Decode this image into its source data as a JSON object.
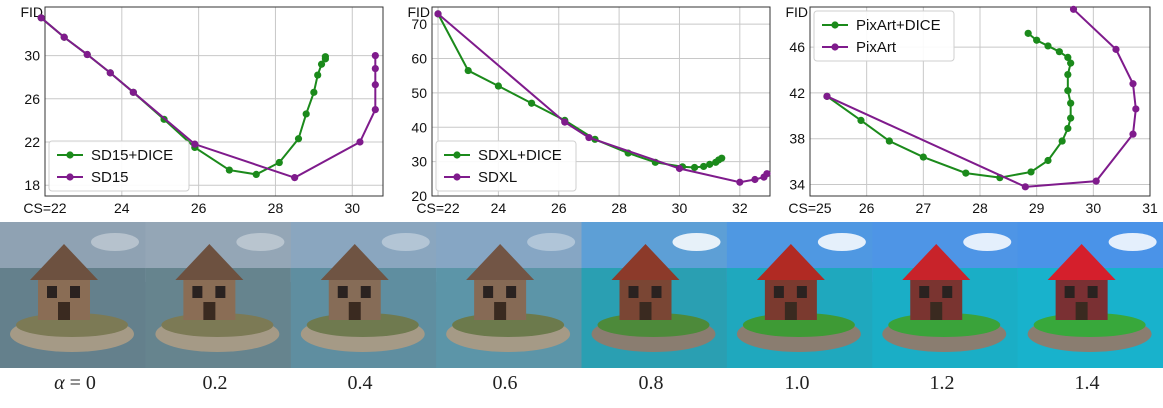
{
  "colors": {
    "dice": "#1b8a1b",
    "base": "#7f1b8c",
    "grid": "#c8c8c8"
  },
  "chart_data": [
    {
      "type": "line",
      "ylabel": "FID",
      "xlabel_prefix": "CS=",
      "xlim": [
        22,
        30.8
      ],
      "ylim": [
        17,
        34.5
      ],
      "xticks": [
        22,
        24,
        26,
        28,
        30
      ],
      "yticks": [
        18,
        22,
        26,
        30
      ],
      "grid": true,
      "legend": "lower-left",
      "series": [
        {
          "name": "SD15+DICE",
          "color": "dice",
          "x": [
            21.9,
            22.5,
            23.1,
            23.7,
            24.3,
            25.1,
            25.9,
            26.8,
            27.5,
            28.1,
            28.6,
            28.8,
            29.0,
            29.1,
            29.2,
            29.3,
            29.3
          ],
          "y": [
            33.5,
            31.7,
            30.1,
            28.4,
            26.6,
            24.1,
            21.5,
            19.4,
            19.0,
            20.1,
            22.3,
            24.6,
            26.6,
            28.2,
            29.2,
            29.7,
            29.9
          ]
        },
        {
          "name": "SD15",
          "color": "base",
          "x": [
            21.9,
            22.5,
            23.1,
            23.7,
            24.3,
            25.9,
            28.5,
            30.2,
            30.6,
            30.6,
            30.6,
            30.6
          ],
          "y": [
            33.5,
            31.7,
            30.1,
            28.4,
            26.6,
            21.8,
            18.7,
            22.0,
            25.0,
            27.3,
            28.8,
            30.0
          ]
        }
      ]
    },
    {
      "type": "line",
      "ylabel": "FID",
      "xlabel_prefix": "CS=",
      "xlim": [
        21.8,
        33.0
      ],
      "ylim": [
        20,
        75
      ],
      "xticks": [
        22,
        24,
        26,
        28,
        30,
        32
      ],
      "yticks": [
        20,
        30,
        40,
        50,
        60,
        70
      ],
      "grid": true,
      "legend": "lower-left",
      "series": [
        {
          "name": "SDXL+DICE",
          "color": "dice",
          "x": [
            22.0,
            23.0,
            24.0,
            25.1,
            26.2,
            27.2,
            28.3,
            29.2,
            30.1,
            30.5,
            30.8,
            31.0,
            31.2,
            31.3,
            31.4
          ],
          "y": [
            73,
            56.5,
            52,
            47,
            42,
            36.5,
            32.5,
            29.8,
            28.5,
            28.3,
            28.6,
            29.2,
            29.8,
            30.5,
            31.0
          ]
        },
        {
          "name": "SDXL",
          "color": "base",
          "x": [
            22.0,
            26.2,
            27.0,
            30.0,
            32.0,
            32.5,
            32.8,
            32.9
          ],
          "y": [
            73,
            41.5,
            37,
            28,
            24,
            24.8,
            25.5,
            26.5
          ]
        }
      ]
    },
    {
      "type": "line",
      "ylabel": "FID",
      "xlabel_prefix": "CS=",
      "xlim": [
        25,
        31
      ],
      "ylim": [
        33,
        49.5
      ],
      "xticks": [
        25,
        26,
        27,
        28,
        29,
        30,
        31
      ],
      "yticks": [
        34,
        38,
        42,
        46
      ],
      "grid": true,
      "legend": "upper-left",
      "series": [
        {
          "name": "PixArt+DICE",
          "color": "dice",
          "x": [
            25.3,
            25.9,
            26.4,
            27.0,
            27.75,
            28.35,
            28.9,
            29.2,
            29.45,
            29.55,
            29.6,
            29.6,
            29.55,
            29.55,
            29.6,
            29.55,
            29.4,
            29.2,
            29.0,
            28.85
          ],
          "y": [
            41.7,
            39.6,
            37.8,
            36.4,
            35.0,
            34.6,
            35.1,
            36.1,
            37.8,
            38.9,
            39.8,
            41.1,
            42.2,
            43.6,
            44.6,
            45.1,
            45.6,
            46.1,
            46.6,
            47.2
          ]
        },
        {
          "name": "PixArt",
          "color": "base",
          "x": [
            25.3,
            28.8,
            30.05,
            30.7,
            30.75,
            30.7,
            30.4,
            29.65
          ],
          "y": [
            41.7,
            33.8,
            34.3,
            38.4,
            40.6,
            42.8,
            45.8,
            49.3
          ]
        }
      ]
    }
  ],
  "captions": {
    "alpha_symbol": "α",
    "alpha_eq": " = 0",
    "values": [
      "0.2",
      "0.4",
      "0.6",
      "0.8",
      "1.0",
      "1.2",
      "1.4"
    ]
  }
}
